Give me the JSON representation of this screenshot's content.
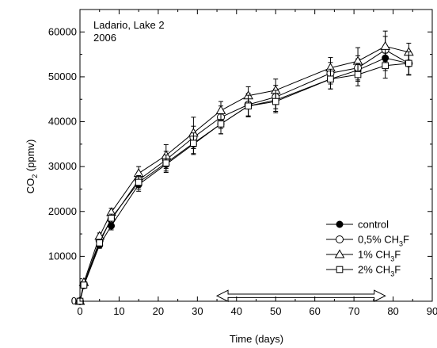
{
  "chart_data": {
    "type": "line",
    "annotation": {
      "line1": "Ladario, Lake 2",
      "line2": "2006"
    },
    "xlabel": "Time (days)",
    "ylabel": {
      "main": "CO",
      "sub": "2",
      "unit": " (ppmv)"
    },
    "xlim": [
      0,
      90
    ],
    "ylim": [
      0,
      65000
    ],
    "xticks": [
      0,
      10,
      20,
      30,
      40,
      50,
      60,
      70,
      80,
      90
    ],
    "xtick_labels": [
      "0",
      "10",
      "20",
      "30",
      "40",
      "50",
      "60",
      "70",
      "80",
      "90"
    ],
    "yticks": [
      0,
      10000,
      20000,
      30000,
      40000,
      50000,
      60000
    ],
    "ytick_labels": [
      "0",
      "10000",
      "20000",
      "30000",
      "40000",
      "50000",
      "60000"
    ],
    "grid": false,
    "legend_position": "bottom-right",
    "arrow": {
      "x_start": 35,
      "x_end": 78,
      "y": 1200
    },
    "x": [
      0,
      1,
      5,
      8,
      15,
      22,
      29,
      36,
      43,
      50,
      64,
      71,
      78,
      84
    ],
    "series": [
      {
        "name": "control",
        "label_parts": {
          "text": "control",
          "sub": "",
          "tail": ""
        },
        "marker": "filled-circle",
        "values": [
          0,
          3500,
          12500,
          16800,
          26000,
          30500,
          35000,
          39500,
          43500,
          44800,
          49500,
          51500,
          54200,
          53000
        ],
        "errors": [
          0,
          300,
          700,
          900,
          1500,
          1800,
          2300,
          2200,
          2400,
          2500,
          2200,
          2500,
          2800,
          2600
        ]
      },
      {
        "name": "0,5% CH3F",
        "label_parts": {
          "text": "0,5% CH",
          "sub": "3",
          "tail": "F"
        },
        "marker": "open-circle",
        "values": [
          0,
          3800,
          13500,
          18200,
          27000,
          31500,
          36500,
          41000,
          43800,
          45500,
          50800,
          52000,
          56000,
          53000
        ],
        "errors": [
          0,
          300,
          700,
          900,
          1600,
          1900,
          2500,
          2500,
          2500,
          2600,
          2400,
          2700,
          3000,
          2500
        ]
      },
      {
        "name": "1% CH3F",
        "label_parts": {
          "text": "1% CH",
          "sub": "3",
          "tail": "F"
        },
        "marker": "open-triangle",
        "values": [
          0,
          4200,
          14500,
          19800,
          28500,
          32500,
          37500,
          42500,
          45800,
          47000,
          52000,
          53500,
          56800,
          55500
        ],
        "errors": [
          0,
          300,
          700,
          900,
          1500,
          2400,
          3500,
          2000,
          2000,
          2500,
          2300,
          3000,
          3400,
          2000
        ]
      },
      {
        "name": "2% CH3F",
        "label_parts": {
          "text": "2% CH",
          "sub": "3",
          "tail": "F"
        },
        "marker": "open-square",
        "values": [
          0,
          3600,
          13000,
          18500,
          26500,
          30800,
          35200,
          39500,
          43500,
          44500,
          49500,
          50500,
          52500,
          53000
        ],
        "errors": [
          0,
          300,
          700,
          900,
          1500,
          1800,
          2300,
          2200,
          2400,
          2500,
          2200,
          2500,
          2800,
          2600
        ]
      }
    ]
  }
}
